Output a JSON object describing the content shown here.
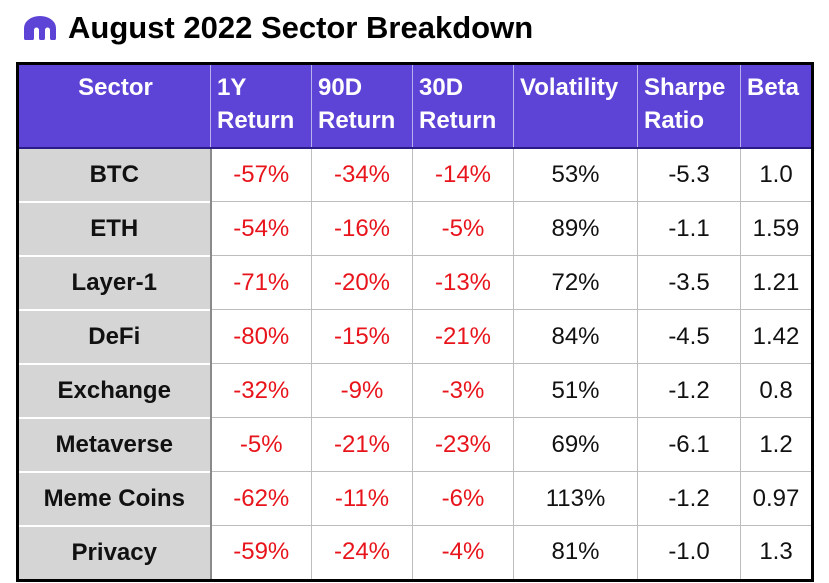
{
  "title": "August 2022 Sector Breakdown",
  "logo_icon": "kraken-logo-icon",
  "colors": {
    "header_bg": "#5e44d6",
    "negative": "#e8141c",
    "sector_bg": "#d5d5d5"
  },
  "chart_data": {
    "type": "table",
    "title": "August 2022 Sector Breakdown",
    "columns": [
      [
        "Sector"
      ],
      [
        "1Y",
        "Return"
      ],
      [
        "90D",
        "Return"
      ],
      [
        "30D",
        "Return"
      ],
      [
        "Volatility"
      ],
      [
        "Sharpe",
        "Ratio"
      ],
      [
        "Beta"
      ]
    ],
    "rows": [
      [
        "BTC",
        "-57%",
        "-34%",
        "-14%",
        "53%",
        "-5.3",
        "1.0"
      ],
      [
        "ETH",
        "-54%",
        "-16%",
        "-5%",
        "89%",
        "-1.1",
        "1.59"
      ],
      [
        "Layer-1",
        "-71%",
        "-20%",
        "-13%",
        "72%",
        "-3.5",
        "1.21"
      ],
      [
        "DeFi",
        "-80%",
        "-15%",
        "-21%",
        "84%",
        "-4.5",
        "1.42"
      ],
      [
        "Exchange",
        "-32%",
        "-9%",
        "-3%",
        "51%",
        "-1.2",
        "0.8"
      ],
      [
        "Metaverse",
        "-5%",
        "-21%",
        "-23%",
        "69%",
        "-6.1",
        "1.2"
      ],
      [
        "Meme Coins",
        "-62%",
        "-11%",
        "-6%",
        "113%",
        "-1.2",
        "0.97"
      ],
      [
        "Privacy",
        "-59%",
        "-24%",
        "-4%",
        "81%",
        "-1.0",
        "1.3"
      ]
    ]
  }
}
